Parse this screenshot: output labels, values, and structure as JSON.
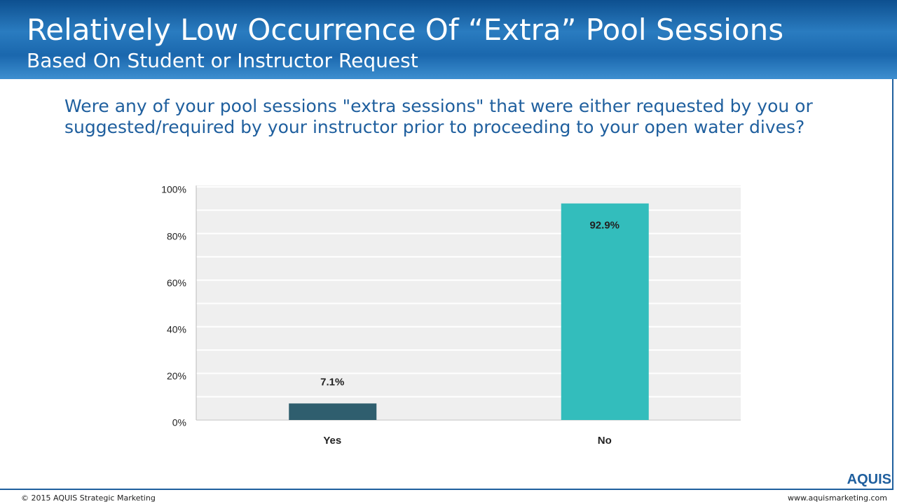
{
  "header": {
    "title": "Relatively Low Occurrence Of “Extra” Pool Sessions",
    "subtitle": "Based On Student or Instructor Request"
  },
  "question": "Were any of your pool sessions \"extra sessions\" that were either requested by you or suggested/required by your instructor prior to proceeding to your open water dives?",
  "chart_data": {
    "type": "bar",
    "categories": [
      "Yes",
      "No"
    ],
    "values": [
      7.1,
      92.9
    ],
    "value_labels": [
      "7.1%",
      "92.9%"
    ],
    "colors": [
      "#2f5e6e",
      "#33bdbc"
    ],
    "ylim": [
      0,
      100
    ],
    "yticks": [
      {
        "value": 0,
        "label": "0%"
      },
      {
        "value": 20,
        "label": "20%"
      },
      {
        "value": 40,
        "label": "40%"
      },
      {
        "value": 60,
        "label": "60%"
      },
      {
        "value": 80,
        "label": "80%"
      },
      {
        "value": 100,
        "label": "100%"
      }
    ],
    "minor_gridlines": [
      10,
      30,
      50,
      70,
      90
    ],
    "grid": true
  },
  "footer": {
    "copyright": "© 2015 AQUIS Strategic Marketing",
    "url": "www.aquismarketing.com",
    "logo": "AQUIS"
  }
}
